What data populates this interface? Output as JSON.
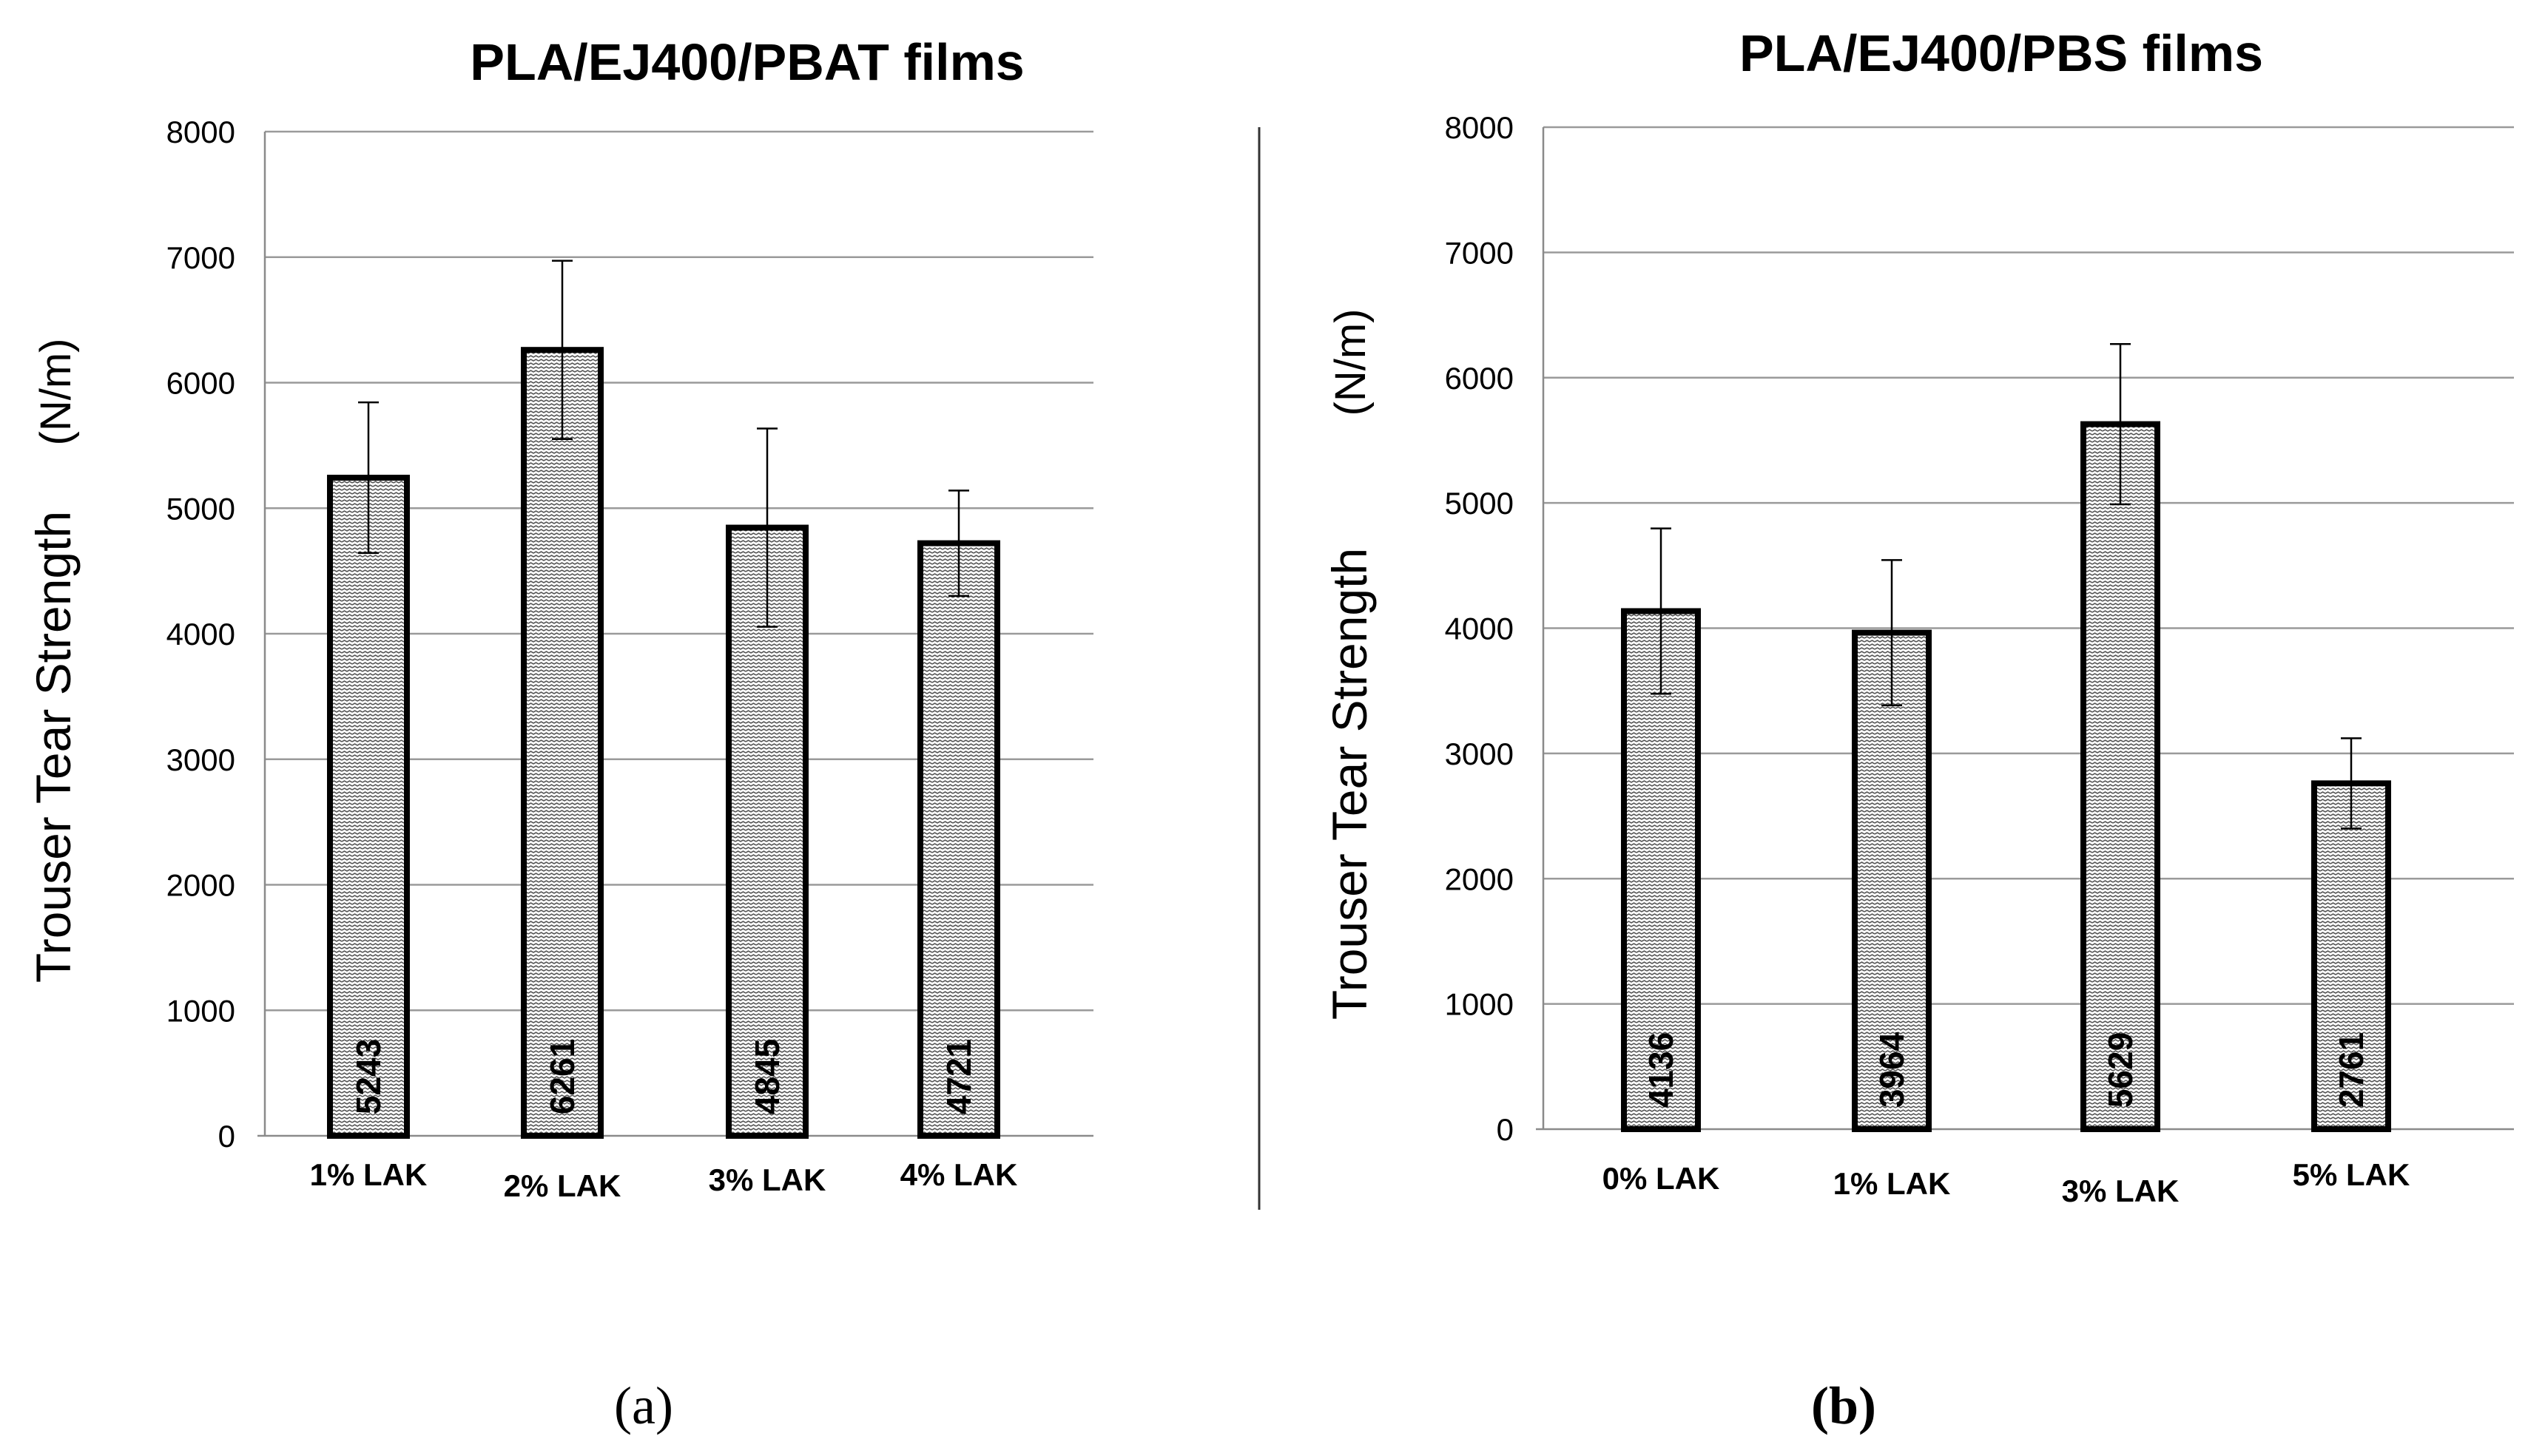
{
  "chart_data": [
    {
      "type": "bar",
      "panel_label": "(a)",
      "title": "PLA/EJ400/PBAT films",
      "ylabel": "Trouser Tear Strength",
      "yunit": "(N/m)",
      "xlabel": "",
      "ylim": [
        0,
        8000
      ],
      "ytick_step": 1000,
      "grid": true,
      "categories": [
        "1% LAK",
        "2% LAK",
        "3% LAK",
        "4% LAK"
      ],
      "values": [
        5243,
        6261,
        4845,
        4721
      ],
      "errors": [
        600,
        710,
        790,
        420
      ],
      "value_labels": [
        "5243",
        "6261",
        "4845",
        "4721"
      ]
    },
    {
      "type": "bar",
      "panel_label": "(b)",
      "title": "PLA/EJ400/PBS films",
      "ylabel": "Trouser Tear Strength",
      "yunit": "(N/m)",
      "xlabel": "",
      "ylim": [
        0,
        8000
      ],
      "ytick_step": 1000,
      "grid": true,
      "categories": [
        "0% LAK",
        "1% LAK",
        "3% LAK",
        "5% LAK"
      ],
      "values": [
        4136,
        3964,
        5629,
        2761
      ],
      "errors": [
        660,
        580,
        640,
        360
      ],
      "value_labels": [
        "4136",
        "3964",
        "5629",
        "2761"
      ]
    }
  ]
}
